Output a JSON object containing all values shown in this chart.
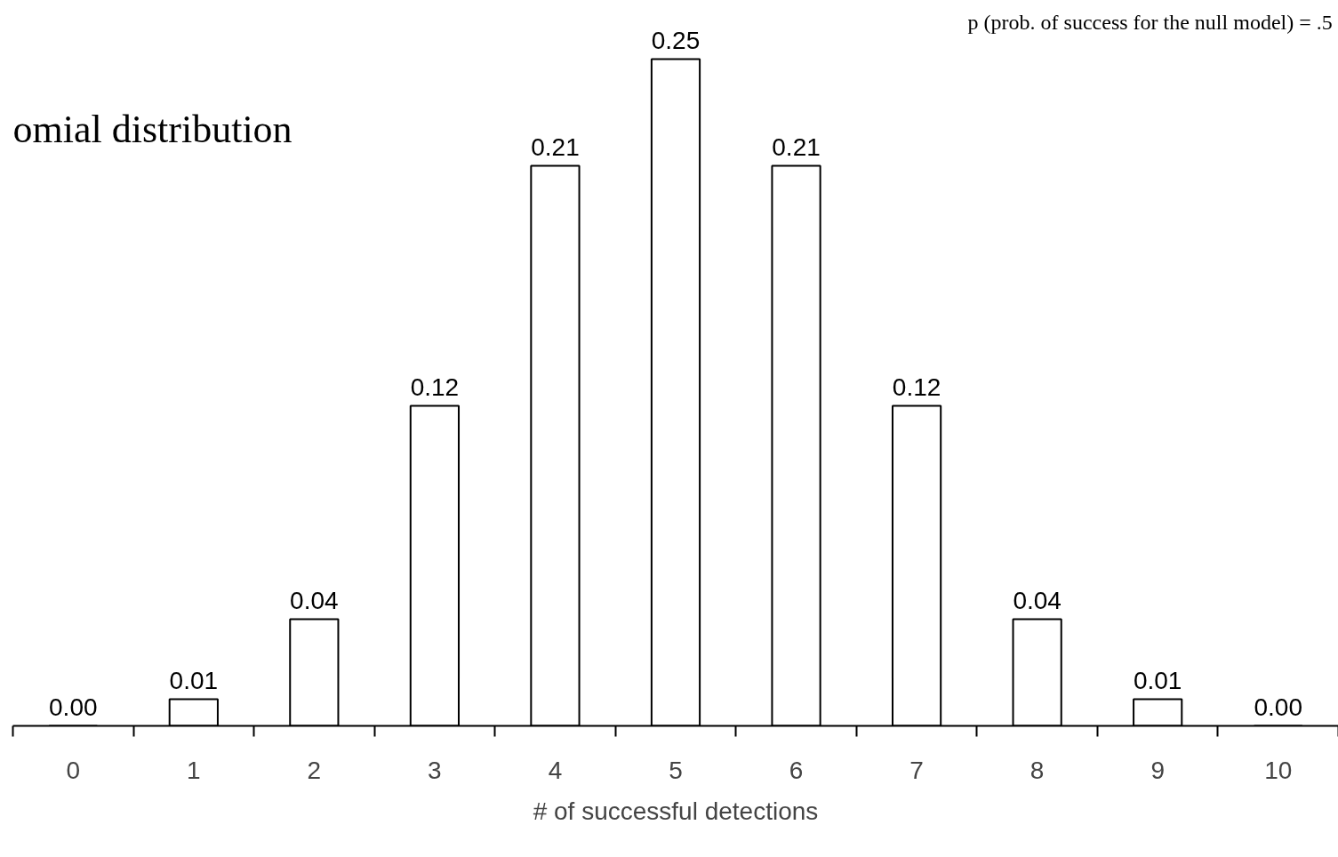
{
  "chart_data": {
    "type": "bar",
    "xlabel": "# of successful detections",
    "categories": [
      "0",
      "1",
      "2",
      "3",
      "4",
      "5",
      "6",
      "7",
      "8",
      "9",
      "10"
    ],
    "values": [
      0.0,
      0.01,
      0.04,
      0.12,
      0.21,
      0.25,
      0.21,
      0.12,
      0.04,
      0.01,
      0.0
    ],
    "color": "#ffffff",
    "grid": false,
    "tick_labels": "x",
    "value_labels": [
      "0.00",
      "0.01",
      "0.04",
      "0.12",
      "0.21",
      "0.25",
      "0.21",
      "0.12",
      "0.04",
      "0.01",
      "0.00"
    ],
    "annotations": [
      "omial distribution",
      "p (prob. of success for the null model) = .5"
    ]
  }
}
